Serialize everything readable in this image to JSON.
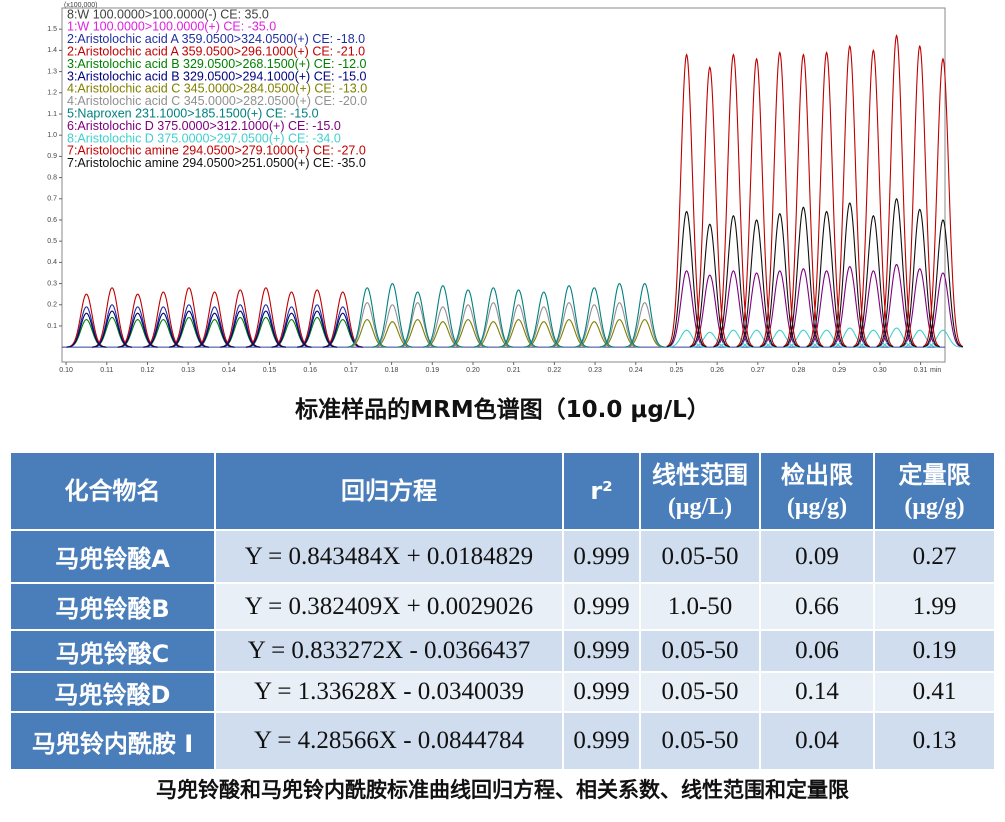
{
  "chart_data": {
    "type": "line",
    "title": "标准样品的MRM色谱图（10.0 μg/L）",
    "y_unit": "(x100,000)",
    "x_label": "min",
    "xlim": [
      0.099,
      0.316
    ],
    "ylim": [
      -0.07,
      1.6
    ],
    "xticks": [
      {
        "value": 0.1,
        "label": "0.10"
      },
      0.11,
      0.12,
      0.13,
      0.14,
      0.15,
      0.16,
      0.17,
      0.18,
      0.19,
      {
        "value": 0.2,
        "label": "0.20"
      },
      0.21,
      0.22,
      0.23,
      0.24,
      0.25,
      0.26,
      0.27,
      0.28,
      0.29,
      {
        "value": 0.3,
        "label": "0.30"
      },
      0.31
    ],
    "yticks": [
      0.1,
      0.2,
      0.3,
      0.4,
      0.5,
      0.6,
      0.7,
      0.8,
      0.9,
      {
        "value": 1.0,
        "label": "1.0"
      },
      1.1,
      1.2,
      1.3,
      1.4,
      1.5
    ],
    "x": [
      0.105,
      0.1113,
      0.1176,
      0.1239,
      0.1302,
      0.1365,
      0.1428,
      0.1491,
      0.1554,
      0.1617,
      0.168,
      0.174,
      0.1802,
      0.1864,
      0.1926,
      0.1988,
      0.205,
      0.2112,
      0.2174,
      0.2236,
      0.2298,
      0.236,
      0.2422,
      0.2525,
      0.2582,
      0.264,
      0.2697,
      0.2754,
      0.2812,
      0.2869,
      0.2926,
      0.2984,
      0.3041,
      0.3098,
      0.3155
    ],
    "series": [
      {
        "name": "8:W 100.0000>100.0000(-) CE: 35.0",
        "color": "#404040",
        "values": [
          null,
          null,
          null,
          null,
          null,
          null,
          null,
          null,
          null,
          null,
          null,
          null,
          null,
          null,
          null,
          null,
          null,
          null,
          null,
          null,
          null,
          null,
          null,
          null,
          null,
          null,
          null,
          null,
          null,
          null,
          null,
          null,
          null,
          null,
          null
        ]
      },
      {
        "name": "1:W 100.0000>100.0000(+) CE: -35.0",
        "color": "#e020e0",
        "values": [
          null,
          null,
          null,
          null,
          null,
          null,
          null,
          null,
          null,
          null,
          null,
          null,
          null,
          null,
          null,
          null,
          null,
          null,
          null,
          null,
          null,
          null,
          null,
          null,
          null,
          null,
          null,
          null,
          null,
          null,
          null,
          null,
          null,
          null,
          null
        ]
      },
      {
        "name": "2:Aristolochic acid A 359.0500>324.0500(+) CE: -18.0",
        "color": "#2030a0",
        "values": [
          0.19,
          0.2,
          0.19,
          0.19,
          0.2,
          0.19,
          0.2,
          0.2,
          0.19,
          0.2,
          0.19,
          null,
          null,
          null,
          null,
          null,
          null,
          null,
          null,
          null,
          null,
          null,
          null,
          null,
          null,
          null,
          null,
          null,
          null,
          null,
          null,
          null,
          null,
          null,
          null
        ]
      },
      {
        "name": "2:Aristolochic acid A 359.0500>296.1000(+) CE: -21.0",
        "color": "#c00000",
        "values": [
          0.25,
          0.28,
          0.25,
          0.26,
          0.28,
          0.26,
          0.27,
          0.28,
          0.26,
          0.27,
          0.26,
          null,
          null,
          null,
          null,
          null,
          null,
          null,
          null,
          null,
          null,
          null,
          null,
          null,
          null,
          null,
          null,
          null,
          null,
          null,
          null,
          null,
          null,
          null,
          null
        ]
      },
      {
        "name": "3:Aristolochic acid B 329.0500>268.1500(+) CE: -12.0",
        "color": "#008000",
        "values": [
          0.13,
          0.14,
          0.13,
          0.13,
          0.14,
          0.13,
          0.14,
          0.14,
          0.13,
          0.14,
          0.13,
          null,
          null,
          null,
          null,
          null,
          null,
          null,
          null,
          null,
          null,
          null,
          null,
          null,
          null,
          null,
          null,
          null,
          null,
          null,
          null,
          null,
          null,
          null,
          null
        ]
      },
      {
        "name": "3:Aristolochic acid B 329.0500>294.1000(+) CE: -15.0",
        "color": "#000080",
        "values": [
          0.16,
          0.17,
          0.16,
          0.16,
          0.17,
          0.16,
          0.17,
          0.17,
          0.16,
          0.17,
          0.16,
          null,
          null,
          null,
          null,
          null,
          null,
          null,
          null,
          null,
          null,
          null,
          null,
          null,
          null,
          null,
          null,
          null,
          null,
          null,
          null,
          null,
          null,
          null,
          null
        ]
      },
      {
        "name": "4:Aristolochic acid C 345.0000>284.0500(+) CE: -13.0",
        "color": "#808000",
        "values": [
          null,
          null,
          null,
          null,
          null,
          null,
          null,
          null,
          null,
          null,
          null,
          0.13,
          0.12,
          0.13,
          0.12,
          0.13,
          0.12,
          0.13,
          0.12,
          0.13,
          0.12,
          0.13,
          0.13,
          null,
          null,
          null,
          null,
          null,
          null,
          null,
          null,
          null,
          null,
          null,
          null
        ]
      },
      {
        "name": "4:Aristolochic acid C 345.0000>282.0500(+) CE: -20.0",
        "color": "#909090",
        "values": [
          null,
          null,
          null,
          null,
          null,
          null,
          null,
          null,
          null,
          null,
          null,
          0.21,
          0.2,
          0.21,
          0.19,
          0.2,
          0.21,
          0.2,
          0.19,
          0.21,
          0.2,
          0.21,
          0.21,
          null,
          null,
          null,
          null,
          null,
          null,
          null,
          null,
          null,
          null,
          null,
          null
        ]
      },
      {
        "name": "5:Naproxen 231.1000>185.1500(+) CE: -15.0",
        "color": "#008080",
        "values": [
          null,
          null,
          null,
          null,
          null,
          null,
          null,
          null,
          null,
          null,
          null,
          0.28,
          0.3,
          0.26,
          0.29,
          0.27,
          0.28,
          0.27,
          0.26,
          0.29,
          0.28,
          0.3,
          0.3,
          null,
          null,
          null,
          null,
          null,
          null,
          null,
          null,
          null,
          null,
          null,
          null
        ]
      },
      {
        "name": "6:Aristolochic D 375.0000>312.1000(+) CE: -15.0",
        "color": "#800080",
        "values": [
          null,
          null,
          null,
          null,
          null,
          null,
          null,
          null,
          null,
          null,
          null,
          null,
          null,
          null,
          null,
          null,
          null,
          null,
          null,
          null,
          null,
          null,
          null,
          0.36,
          0.34,
          0.36,
          0.35,
          0.36,
          0.37,
          0.36,
          0.38,
          0.36,
          0.39,
          0.37,
          0.35
        ]
      },
      {
        "name": "8:Aristolochic D 375.0000>297.0500(+) CE: -34.0",
        "color": "#40d0d0",
        "values": [
          null,
          null,
          null,
          null,
          null,
          null,
          null,
          null,
          null,
          null,
          null,
          null,
          null,
          null,
          null,
          null,
          null,
          null,
          null,
          null,
          null,
          null,
          null,
          0.08,
          0.07,
          0.08,
          0.08,
          0.08,
          0.08,
          0.08,
          0.09,
          0.08,
          0.09,
          0.08,
          0.08
        ]
      },
      {
        "name": "7:Aristolochic amine 294.0500>279.1000(+) CE: -27.0",
        "color": "#c00000",
        "values": [
          null,
          null,
          null,
          null,
          null,
          null,
          null,
          null,
          null,
          null,
          null,
          null,
          null,
          null,
          null,
          null,
          null,
          null,
          null,
          null,
          null,
          null,
          null,
          1.38,
          1.32,
          1.38,
          1.36,
          1.39,
          1.38,
          1.39,
          1.42,
          1.4,
          1.47,
          1.42,
          1.36
        ]
      },
      {
        "name": "7:Aristolochic amine 294.0500>251.0500(+) CE: -35.0",
        "color": "#101010",
        "values": [
          null,
          null,
          null,
          null,
          null,
          null,
          null,
          null,
          null,
          null,
          null,
          null,
          null,
          null,
          null,
          null,
          null,
          null,
          null,
          null,
          null,
          null,
          null,
          0.64,
          0.58,
          0.62,
          0.6,
          0.63,
          0.66,
          0.64,
          0.68,
          0.62,
          0.7,
          0.65,
          0.6
        ]
      }
    ]
  },
  "table": {
    "header": [
      [
        "化合物名"
      ],
      [
        "回归方程"
      ],
      [
        "r²"
      ],
      [
        "线性范围",
        "(μg/L)"
      ],
      [
        "检出限",
        "(μg/g)"
      ],
      [
        "定量限",
        "(μg/g)"
      ]
    ],
    "rows": [
      [
        "马兜铃酸A",
        "Y = 0.843484X + 0.0184829",
        "0.999",
        "0.05-50",
        "0.09",
        "0.27"
      ],
      [
        "马兜铃酸B",
        "Y = 0.382409X + 0.0029026",
        "0.999",
        "1.0-50",
        "0.66",
        "1.99"
      ],
      [
        "马兜铃酸C",
        "Y = 0.833272X - 0.0366437",
        "0.999",
        "0.05-50",
        "0.06",
        "0.19"
      ],
      [
        "马兜铃酸D",
        "Y = 1.33628X - 0.0340039",
        "0.999",
        "0.05-50",
        "0.14",
        "0.41"
      ],
      [
        "马兜铃内酰胺 I",
        "Y = 4.28566X - 0.0844784",
        "0.999",
        "0.05-50",
        "0.04",
        "0.13"
      ]
    ],
    "caption": "马兜铃酸和马兜铃内酰胺标准曲线回归方程、相关系数、线性范围和定量限"
  }
}
